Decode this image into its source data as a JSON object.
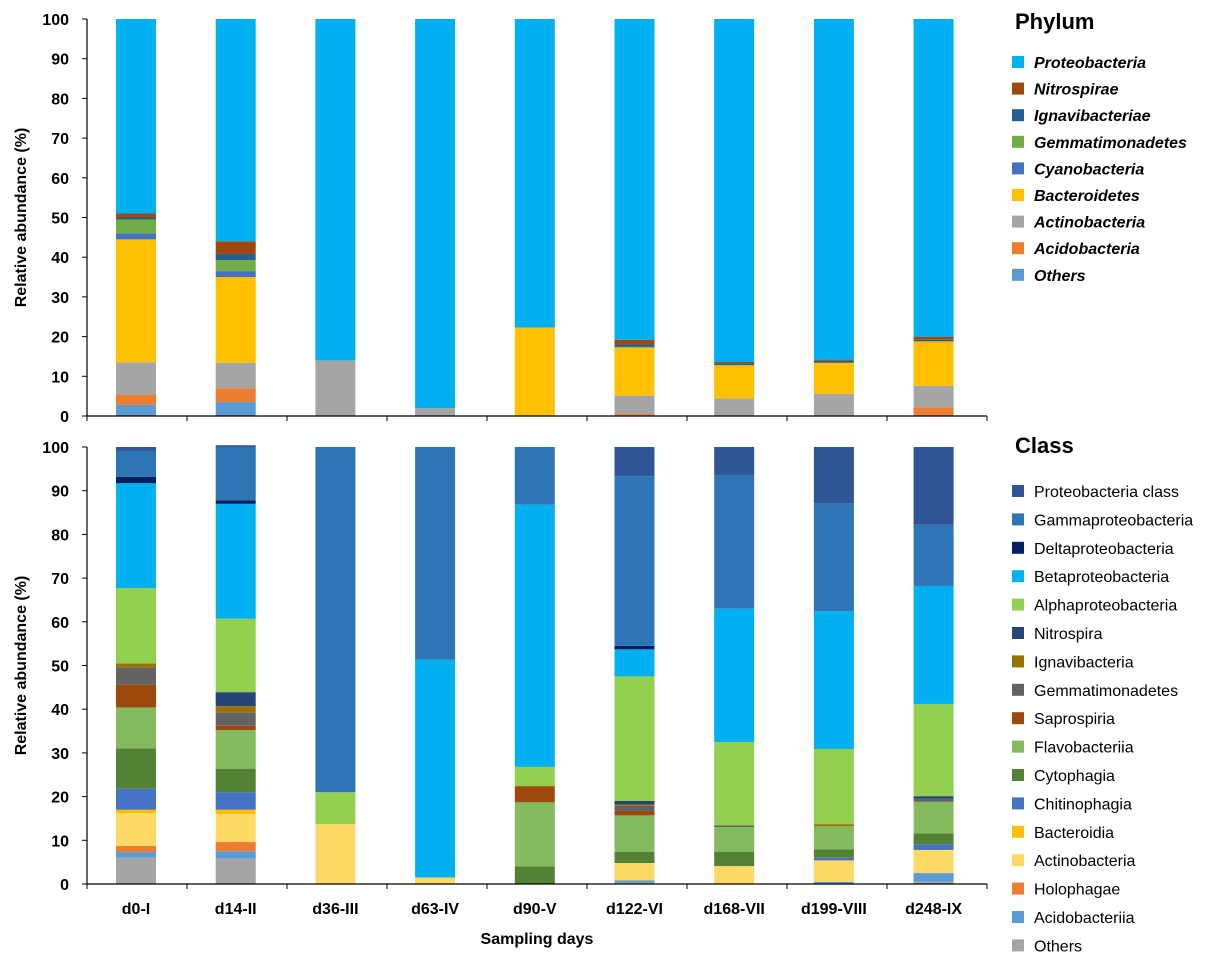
{
  "chart_data": [
    {
      "type": "bar",
      "stacked": true,
      "legend_title": "Phylum",
      "ylabel": "Relative abundance (%)",
      "xlabel": "",
      "ylim": [
        0,
        100
      ],
      "yticks": [
        0,
        10,
        20,
        30,
        40,
        50,
        60,
        70,
        80,
        90,
        100
      ],
      "grid": false,
      "legend_position": "right",
      "categories": [
        "d0-I",
        "d14-II",
        "d36-III",
        "d63-IV",
        "d90-V",
        "d122-VI",
        "d168-VII",
        "d199-VIII",
        "d248-IX"
      ],
      "series": [
        {
          "name": "Others",
          "color": "#5b9bd5",
          "values": [
            2.8,
            3.5,
            0,
            0,
            0,
            0.2,
            0,
            0,
            0
          ]
        },
        {
          "name": "Acidobacteria",
          "color": "#ed7d31",
          "values": [
            2.5,
            3.5,
            0,
            0,
            0,
            0.4,
            0,
            0,
            2.2
          ]
        },
        {
          "name": "Actinobacteria",
          "color": "#a5a5a5",
          "values": [
            8.2,
            6.4,
            14.0,
            2.0,
            0,
            4.5,
            4.4,
            5.6,
            5.4
          ]
        },
        {
          "name": "Bacteroidetes",
          "color": "#ffc000",
          "values": [
            31.0,
            21.6,
            0,
            0,
            22.3,
            12.1,
            8.4,
            7.8,
            11.2
          ]
        },
        {
          "name": "Cyanobacteria",
          "color": "#4472c4",
          "values": [
            1.5,
            1.5,
            0,
            0,
            0,
            0,
            0,
            0,
            0
          ]
        },
        {
          "name": "Gemmatimonadetes",
          "color": "#70ad47",
          "values": [
            3.5,
            2.8,
            0,
            0,
            0,
            0.2,
            0,
            0,
            0
          ]
        },
        {
          "name": "Ignavibacteriae",
          "color": "#255e91",
          "values": [
            0.5,
            1.5,
            0,
            0,
            0,
            0.6,
            0.5,
            0.5,
            0.4
          ]
        },
        {
          "name": "Nitrospirae",
          "color": "#9e480e",
          "values": [
            1.0,
            3.2,
            0,
            0,
            0,
            1.2,
            0.3,
            0.3,
            0.7
          ]
        },
        {
          "name": "Proteobacteria",
          "color": "#00b0f0",
          "values": [
            49.0,
            56.0,
            86.0,
            98.0,
            77.7,
            80.8,
            86.4,
            85.8,
            80.1
          ]
        }
      ],
      "legend_order": [
        "Proteobacteria",
        "Nitrospirae",
        "Ignavibacteriae",
        "Gemmatimonadetes",
        "Cyanobacteria",
        "Bacteroidetes",
        "Actinobacteria",
        "Acidobacteria",
        "Others"
      ]
    },
    {
      "type": "bar",
      "stacked": true,
      "legend_title": "Class",
      "ylabel": "Relative abundance (%)",
      "xlabel": "Sampling days",
      "ylim": [
        0,
        100
      ],
      "yticks": [
        0,
        10,
        20,
        30,
        40,
        50,
        60,
        70,
        80,
        90,
        100
      ],
      "grid": false,
      "legend_position": "right",
      "categories": [
        "d0-I",
        "d14-II",
        "d36-III",
        "d63-IV",
        "d90-V",
        "d122-VI",
        "d168-VII",
        "d199-VIII",
        "d248-IX"
      ],
      "series": [
        {
          "name": "Others",
          "color": "#a5a5a5",
          "values": [
            6.0,
            5.8,
            0,
            0,
            0,
            0.3,
            0,
            0,
            0.5
          ]
        },
        {
          "name": "Acidobacteriia",
          "color": "#5b9bd5",
          "values": [
            1.3,
            1.7,
            0,
            0,
            0,
            0.5,
            0,
            0.5,
            2.0
          ]
        },
        {
          "name": "Holophagae",
          "color": "#ed7d31",
          "values": [
            1.4,
            2.1,
            0,
            0,
            0,
            0,
            0,
            0,
            0
          ]
        },
        {
          "name": "Actinobacteria",
          "color": "#ffd966",
          "values": [
            7.5,
            6.4,
            13.7,
            1.5,
            0,
            4.0,
            4.1,
            4.9,
            5.3
          ]
        },
        {
          "name": "Bacteroidia",
          "color": "#ffc000",
          "values": [
            0.8,
            1.0,
            0,
            0,
            0,
            0,
            0,
            0,
            0
          ]
        },
        {
          "name": "Chitinophagia",
          "color": "#4472c4",
          "values": [
            4.8,
            4.0,
            0,
            0,
            0,
            0,
            0,
            0.6,
            1.3
          ]
        },
        {
          "name": "Cytophagia",
          "color": "#548235",
          "values": [
            9.2,
            5.4,
            0,
            0,
            4.0,
            2.6,
            3.3,
            1.9,
            2.5
          ]
        },
        {
          "name": "Flavobacteriia",
          "color": "#83bb5e",
          "values": [
            9.4,
            8.8,
            0,
            0,
            14.7,
            8.3,
            5.6,
            5.3,
            7.2
          ]
        },
        {
          "name": "Saprospiria",
          "color": "#9e480e",
          "values": [
            5.2,
            1.0,
            0,
            0,
            3.7,
            1.0,
            0,
            0,
            0
          ]
        },
        {
          "name": "Gemmatimonadetes",
          "color": "#636363",
          "values": [
            4.0,
            3.0,
            0,
            0,
            0,
            1.2,
            0.4,
            0,
            0.7
          ]
        },
        {
          "name": "Ignavibacteria",
          "color": "#997300",
          "values": [
            0.9,
            1.5,
            0,
            0,
            0,
            0.3,
            0,
            0.5,
            0
          ]
        },
        {
          "name": "Nitrospira",
          "color": "#264478",
          "values": [
            0,
            3.2,
            0,
            0,
            0,
            0.8,
            0,
            0,
            0.6
          ]
        },
        {
          "name": "Alphaproteobacteria",
          "color": "#92d050",
          "values": [
            17.2,
            16.8,
            7.3,
            0,
            4.4,
            28.5,
            19.1,
            17.2,
            21.1
          ]
        },
        {
          "name": "Betaproteobacteria",
          "color": "#00b0f0",
          "values": [
            24.0,
            26.3,
            0,
            49.8,
            60.0,
            6.2,
            30.5,
            31.5,
            27.0
          ]
        },
        {
          "name": "Deltaproteobacteria",
          "color": "#002060",
          "values": [
            1.5,
            0.8,
            0,
            0,
            0,
            0.8,
            0,
            0,
            0
          ]
        },
        {
          "name": "Gammaproteobacteria",
          "color": "#2e75b6",
          "values": [
            6.0,
            12.0,
            79.0,
            48.7,
            13.2,
            38.8,
            30.6,
            24.7,
            14.0
          ]
        },
        {
          "name": "Proteobacteria class",
          "color": "#2f5597",
          "values": [
            0.8,
            0.6,
            0,
            0,
            0,
            6.7,
            6.4,
            12.9,
            17.8
          ]
        }
      ],
      "legend_order": [
        "Proteobacteria class",
        "Gammaproteobacteria",
        "Deltaproteobacteria",
        "Betaproteobacteria",
        "Alphaproteobacteria",
        "Nitrospira",
        "Ignavibacteria",
        "Gemmatimonadetes",
        "Saprospiria",
        "Flavobacteriia",
        "Cytophagia",
        "Chitinophagia",
        "Bacteroidia",
        "Actinobacteria",
        "Holophagae",
        "Acidobacteriia",
        "Others"
      ]
    }
  ]
}
